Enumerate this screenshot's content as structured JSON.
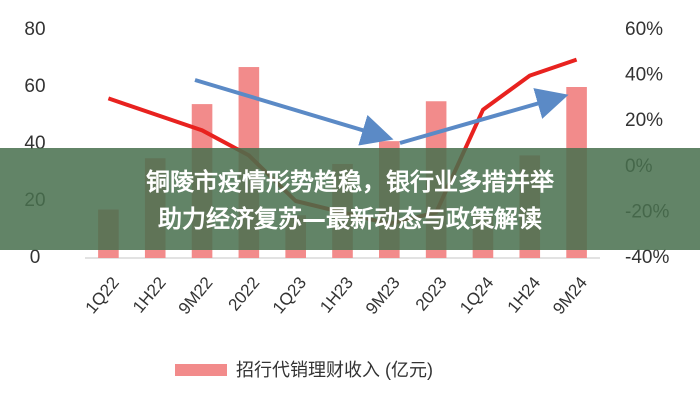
{
  "chart_data": {
    "type": "bar",
    "categories": [
      "1Q22",
      "1H22",
      "9M22",
      "2022",
      "1Q23",
      "1H23",
      "9M23",
      "2023",
      "1Q24",
      "1H24",
      "9M24"
    ],
    "series": [
      {
        "name": "招行代销理财收入 (亿元)",
        "color": "#f28b8b",
        "values": [
          17,
          35,
          54,
          67,
          15,
          33,
          41,
          55,
          15,
          36,
          60
        ]
      },
      {
        "type": "line",
        "axis": "y2",
        "color": "#e8221f",
        "values": [
          30,
          23,
          16,
          5,
          -15,
          -20,
          -25,
          -20,
          25,
          40,
          47
        ]
      }
    ],
    "ylim": [
      0,
      80
    ],
    "yticks": [
      0,
      20,
      40,
      60,
      80
    ],
    "y2lim": [
      -40,
      60
    ],
    "y2ticks": [
      {
        "value": -40,
        "label": "-40%"
      },
      {
        "value": -20,
        "label": "-20%"
      },
      {
        "value": 0,
        "label": "0%"
      },
      {
        "value": 20,
        "label": "20%"
      },
      {
        "value": 40,
        "label": "40%"
      },
      {
        "value": 60,
        "label": "60%"
      }
    ],
    "legend": "bottom",
    "banner": [
      "铜陵市疫情形势趋稳，银行业多措并举",
      "助力经济复苏—最新动态与政策解读"
    ]
  }
}
